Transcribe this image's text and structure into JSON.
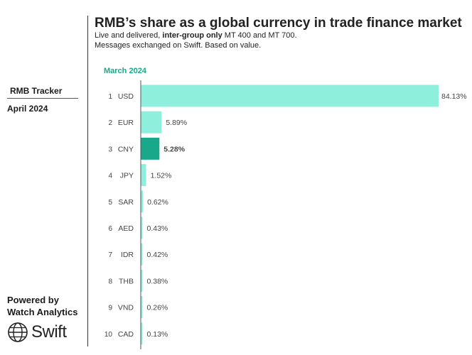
{
  "sidebar": {
    "tracker_title": "RMB Tracker",
    "tracker_date": "April 2024",
    "powered_by_line1": "Powered by",
    "powered_by_line2": "Watch Analytics",
    "logo_text": "Swift"
  },
  "header": {
    "title": "RMB’s share as a global currency in trade finance market",
    "subtitle_prefix": "Live and delivered, ",
    "subtitle_bold": "inter-group only",
    "subtitle_suffix": " MT 400 and MT 700.",
    "subtitle_line2": "Messages exchanged on Swift. Based on value.",
    "period": "March 2024"
  },
  "chart_data": {
    "type": "bar",
    "orientation": "horizontal",
    "categories": [
      "USD",
      "EUR",
      "CNY",
      "JPY",
      "SAR",
      "AED",
      "IDR",
      "THB",
      "VND",
      "CAD"
    ],
    "ranks": [
      "1",
      "2",
      "3",
      "4",
      "5",
      "6",
      "7",
      "8",
      "9",
      "10"
    ],
    "values": [
      84.13,
      5.89,
      5.28,
      1.52,
      0.62,
      0.43,
      0.42,
      0.38,
      0.26,
      0.13
    ],
    "value_labels": [
      "84.13%",
      "5.89%",
      "5.28%",
      "1.52%",
      "0.62%",
      "0.43%",
      "0.42%",
      "0.38%",
      "0.26%",
      "0.13%"
    ],
    "highlight": "CNY",
    "colors": {
      "bar": "#8ef0dc",
      "highlight": "#1aa88a"
    },
    "xlim": [
      0,
      84.13
    ],
    "grid": false
  }
}
